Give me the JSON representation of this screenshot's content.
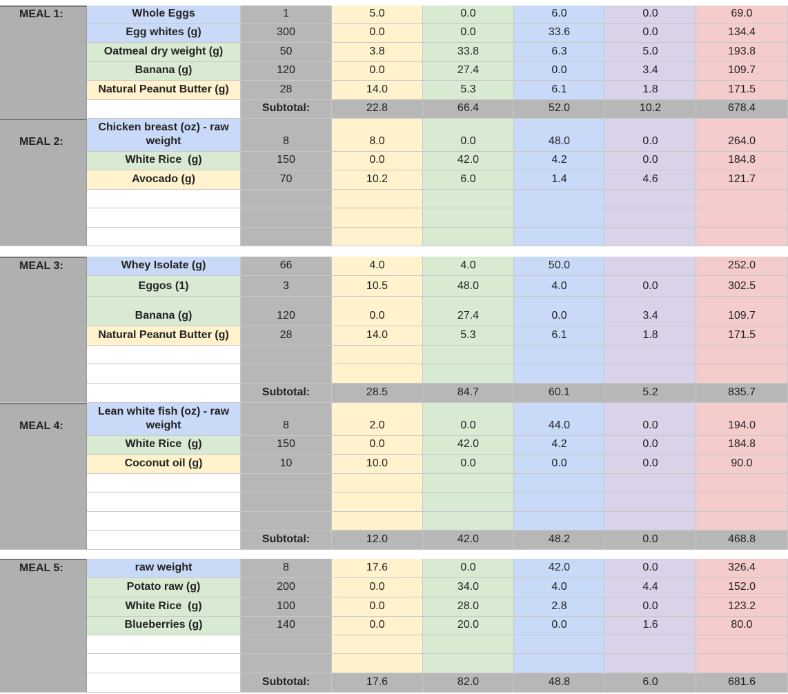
{
  "column_colors": [
    "#fff2cc",
    "#d9ead3",
    "#c9daf8",
    "#d9d2e9",
    "#f4cccc"
  ],
  "panels": [
    {
      "meals": [
        {
          "label": "MEAL 1:",
          "rows": [
            {
              "food": "Whole Eggs",
              "color": "#c9daf8",
              "qty": 1,
              "values": [
                "5.0",
                "0.0",
                "6.0",
                "0.0",
                "69.0"
              ]
            },
            {
              "food": "Egg whites (g)",
              "color": "#c9daf8",
              "qty": 300,
              "values": [
                "0.0",
                "0.0",
                "33.6",
                "0.0",
                "134.4"
              ]
            },
            {
              "food": "Oatmeal dry weight (g)",
              "color": "#d9ead3",
              "qty": 50,
              "values": [
                "3.8",
                "33.8",
                "6.3",
                "5.0",
                "193.8"
              ]
            },
            {
              "food": "Banana (g)",
              "color": "#d9ead3",
              "qty": 120,
              "values": [
                "0.0",
                "27.4",
                "0.0",
                "3.4",
                "109.7"
              ]
            },
            {
              "food": "Natural Peanut Butter (g)",
              "color": "#fff2cc",
              "qty": 28,
              "values": [
                "14.0",
                "5.3",
                "6.1",
                "1.8",
                "171.5"
              ]
            }
          ],
          "subtotal": {
            "label": "Subtotal:",
            "values": [
              "22.8",
              "66.4",
              "52.0",
              "10.2",
              "678.4"
            ]
          }
        },
        {
          "label": "MEAL 2:",
          "rows": [
            {
              "food": "Chicken breast (oz) - raw weight",
              "color": "#c9daf8",
              "qty": 8,
              "values": [
                "8.0",
                "0.0",
                "48.0",
                "0.0",
                "264.0"
              ]
            },
            {
              "food": "White Rice  (g)",
              "color": "#d9ead3",
              "qty": 150,
              "values": [
                "0.0",
                "42.0",
                "4.2",
                "0.0",
                "184.8"
              ]
            },
            {
              "food": "Avocado (g)",
              "color": "#fff2cc",
              "qty": 70,
              "values": [
                "10.2",
                "6.0",
                "1.4",
                "4.6",
                "121.7"
              ]
            }
          ]
        }
      ]
    },
    {
      "meals": [
        {
          "label": "MEAL 3:",
          "rows": [
            {
              "food": "Whey Isolate (g)",
              "color": "#c9daf8",
              "qty": 66,
              "values": [
                "4.0",
                "4.0",
                "50.0",
                null,
                "252.0"
              ]
            },
            {
              "food": "Eggos (1)",
              "color": "#d9ead3",
              "qty": 3,
              "values": [
                "10.5",
                "48.0",
                "4.0",
                "0.0",
                "302.5"
              ]
            },
            {
              "food": "Banana (g)",
              "color": "#d9ead3",
              "qty": 120,
              "values": [
                "0.0",
                "27.4",
                "0.0",
                "3.4",
                "109.7"
              ]
            },
            {
              "food": "Natural Peanut Butter (g)",
              "color": "#fff2cc",
              "qty": 28,
              "values": [
                "14.0",
                "5.3",
                "6.1",
                "1.8",
                "171.5"
              ]
            }
          ],
          "subtotal": {
            "label": "Subtotal:",
            "values": [
              "28.5",
              "84.7",
              "60.1",
              "5.2",
              "835.7"
            ]
          }
        },
        {
          "label": "MEAL 4:",
          "rows": [
            {
              "food": "Lean white fish (oz) - raw weight",
              "color": "#c9daf8",
              "qty": 8,
              "values": [
                "2.0",
                "0.0",
                "44.0",
                "0.0",
                "194.0"
              ]
            },
            {
              "food": "White Rice  (g)",
              "color": "#d9ead3",
              "qty": 150,
              "values": [
                "0.0",
                "42.0",
                "4.2",
                "0.0",
                "184.8"
              ]
            },
            {
              "food": "Coconut oil (g)",
              "color": "#fff2cc",
              "qty": 10,
              "values": [
                "10.0",
                "0.0",
                "0.0",
                "0.0",
                "90.0"
              ]
            }
          ],
          "subtotal": {
            "label": "Subtotal:",
            "values": [
              "12.0",
              "42.0",
              "48.2",
              "0.0",
              "468.8"
            ]
          }
        }
      ]
    },
    {
      "meals": [
        {
          "label": "MEAL 5:",
          "rows": [
            {
              "food": "raw weight",
              "color": "#c9daf8",
              "qty": 8,
              "values": [
                "17.6",
                "0.0",
                "42.0",
                "0.0",
                "326.4"
              ]
            },
            {
              "food": "Potato raw (g)",
              "color": "#d9ead3",
              "qty": 200,
              "values": [
                "0.0",
                "34.0",
                "4.0",
                "4.4",
                "152.0"
              ]
            },
            {
              "food": "White Rice  (g)",
              "color": "#d9ead3",
              "qty": 100,
              "values": [
                "0.0",
                "28.0",
                "2.8",
                "0.0",
                "123.2"
              ]
            },
            {
              "food": "Blueberries (g)",
              "color": "#d9ead3",
              "qty": 140,
              "values": [
                "0.0",
                "20.0",
                "0.0",
                "1.6",
                "80.0"
              ]
            }
          ],
          "subtotal": {
            "label": "Subtotal:",
            "values": [
              "17.6",
              "82.0",
              "48.8",
              "6.0",
              "681.6"
            ]
          }
        }
      ]
    }
  ]
}
